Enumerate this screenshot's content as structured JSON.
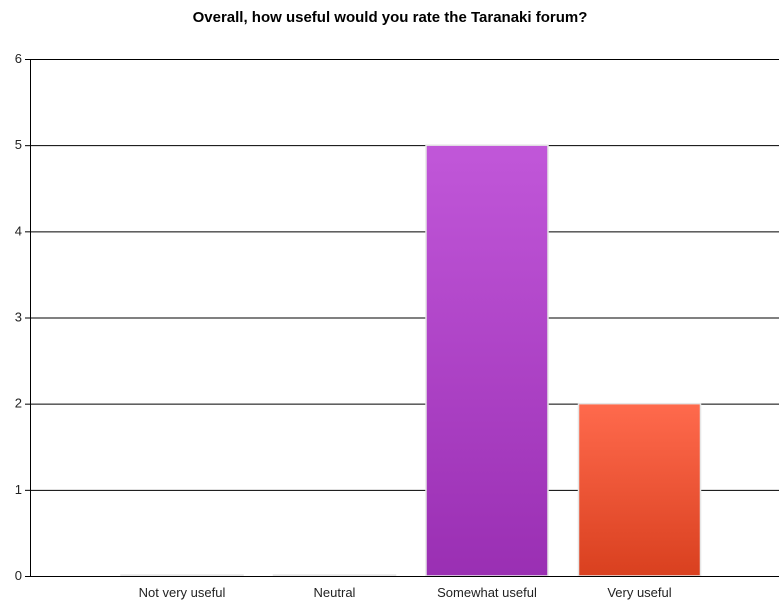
{
  "chart_data": {
    "type": "bar",
    "title": "Overall, how useful would you rate the Taranaki forum?",
    "xlabel": "",
    "ylabel": "",
    "categories": [
      "Not very useful",
      "Neutral",
      "Somewhat useful",
      "Very useful"
    ],
    "values": [
      0,
      0,
      5,
      2
    ],
    "ylim": [
      0,
      6
    ],
    "yticks": [
      0,
      1,
      2,
      3,
      4,
      5,
      6
    ],
    "grid": true,
    "legend": "none",
    "colors": [
      [
        "#e0e0e0",
        "#cccccc"
      ],
      [
        "#e0e0e0",
        "#cccccc"
      ],
      [
        "#c157d9",
        "#9a2fb3"
      ],
      [
        "#ff6a4d",
        "#d9401f"
      ]
    ]
  }
}
